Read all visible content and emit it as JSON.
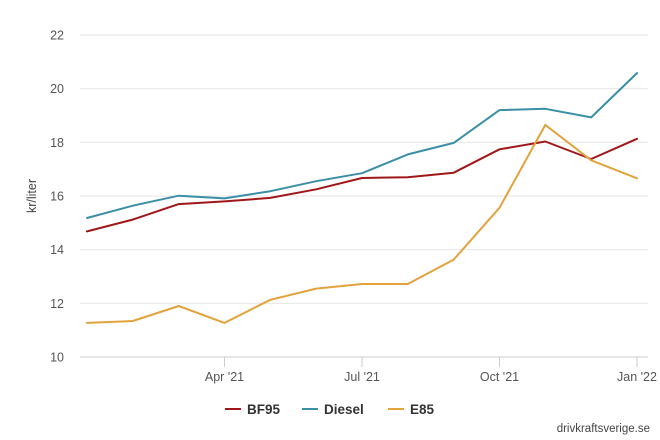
{
  "chart_data": {
    "type": "line",
    "ylabel": "kr/liter",
    "xlabel": "",
    "ylim": [
      10,
      22
    ],
    "yticks": [
      10,
      12,
      14,
      16,
      18,
      20,
      22
    ],
    "x": [
      "2021-01",
      "2021-02",
      "2021-03",
      "2021-04",
      "2021-05",
      "2021-06",
      "2021-07",
      "2021-08",
      "2021-09",
      "2021-10",
      "2021-11",
      "2021-12",
      "2022-01"
    ],
    "xticks": [
      {
        "value": "2021-04",
        "label": "Apr '21"
      },
      {
        "value": "2021-07",
        "label": "Jul '21"
      },
      {
        "value": "2021-10",
        "label": "Oct '21"
      },
      {
        "value": "2022-01",
        "label": "Jan '22"
      }
    ],
    "grid": "horizontal",
    "legend_position": "bottom-center",
    "series": [
      {
        "name": "BF95",
        "color": "#a0171a",
        "values": [
          14.68,
          15.12,
          15.7,
          15.8,
          15.93,
          16.25,
          16.67,
          16.7,
          16.87,
          17.74,
          18.03,
          17.38,
          18.13
        ]
      },
      {
        "name": "Diesel",
        "color": "#3a8fa6",
        "values": [
          15.18,
          15.64,
          16.01,
          15.91,
          16.18,
          16.55,
          16.85,
          17.55,
          17.98,
          19.2,
          19.25,
          18.93,
          20.58
        ]
      },
      {
        "name": "E85",
        "color": "#e2a23c",
        "values": [
          11.27,
          11.34,
          11.9,
          11.27,
          12.13,
          12.55,
          12.72,
          12.72,
          13.63,
          15.56,
          18.65,
          17.33,
          16.66
        ]
      }
    ]
  },
  "credit": "drivkraftsverige.se"
}
